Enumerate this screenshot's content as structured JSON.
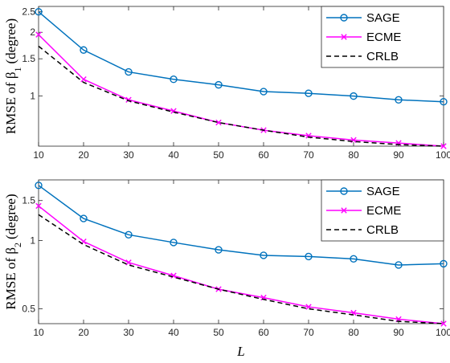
{
  "chart_data": [
    {
      "type": "line",
      "ylabel_main": "RMSE of β",
      "ylabel_sub": "1",
      "ylabel_unit": "(degree)",
      "yscale": "log",
      "ylim": [
        0.58,
        2.65
      ],
      "xlim": [
        10,
        100
      ],
      "yticks": [
        1,
        1.5,
        2,
        2.5
      ],
      "ytick_labels": [
        "1",
        "1.5",
        "2",
        "2.5"
      ],
      "xticks": [
        10,
        20,
        30,
        40,
        50,
        60,
        70,
        80,
        90,
        100
      ],
      "xtick_labels": [
        "10",
        "20",
        "30",
        "40",
        "50",
        "60",
        "70",
        "80",
        "90",
        "100"
      ],
      "legend_position": "top-right",
      "x": [
        10,
        20,
        30,
        40,
        50,
        60,
        70,
        80,
        90,
        100
      ],
      "series": [
        {
          "name": "SAGE",
          "values": [
            2.5,
            1.65,
            1.3,
            1.2,
            1.13,
            1.05,
            1.03,
            1.0,
            0.96,
            0.94
          ],
          "color": "#0072BD",
          "marker": "circle",
          "dash": "solid"
        },
        {
          "name": "ECME",
          "values": [
            1.95,
            1.2,
            0.96,
            0.85,
            0.75,
            0.69,
            0.65,
            0.62,
            0.6,
            0.58
          ],
          "color": "#FF00FF",
          "marker": "x",
          "dash": "solid"
        },
        {
          "name": "CRLB",
          "values": [
            1.72,
            1.16,
            0.95,
            0.84,
            0.75,
            0.69,
            0.64,
            0.61,
            0.59,
            0.58
          ],
          "color": "#000000",
          "marker": "none",
          "dash": "dashed"
        }
      ]
    },
    {
      "type": "line",
      "ylabel_main": "RMSE of β",
      "ylabel_sub": "2",
      "ylabel_unit": "(degree)",
      "xlabel": "L",
      "yscale": "log",
      "ylim": [
        0.43,
        1.85
      ],
      "xlim": [
        10,
        100
      ],
      "yticks": [
        0.5,
        1,
        1.5
      ],
      "ytick_labels": [
        "0.5",
        "1",
        "1.5"
      ],
      "xticks": [
        10,
        20,
        30,
        40,
        50,
        60,
        70,
        80,
        90,
        100
      ],
      "xtick_labels": [
        "10",
        "20",
        "30",
        "40",
        "50",
        "60",
        "70",
        "80",
        "90",
        "100"
      ],
      "legend_position": "top-right",
      "x": [
        10,
        20,
        30,
        40,
        50,
        60,
        70,
        80,
        90,
        100
      ],
      "series": [
        {
          "name": "SAGE",
          "values": [
            1.75,
            1.25,
            1.06,
            0.98,
            0.91,
            0.86,
            0.85,
            0.83,
            0.78,
            0.79
          ],
          "color": "#0072BD",
          "marker": "circle",
          "dash": "solid"
        },
        {
          "name": "ECME",
          "values": [
            1.42,
            0.99,
            0.8,
            0.7,
            0.61,
            0.56,
            0.51,
            0.48,
            0.45,
            0.43
          ],
          "color": "#FF00FF",
          "marker": "x",
          "dash": "solid"
        },
        {
          "name": "CRLB",
          "values": [
            1.3,
            0.96,
            0.78,
            0.69,
            0.61,
            0.55,
            0.5,
            0.47,
            0.44,
            0.43
          ],
          "color": "#000000",
          "marker": "none",
          "dash": "dashed"
        }
      ]
    }
  ]
}
